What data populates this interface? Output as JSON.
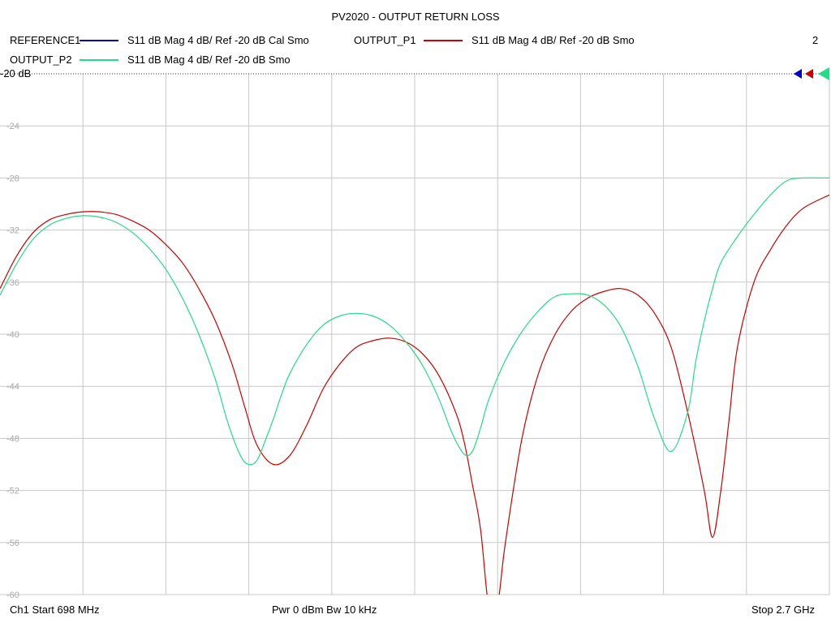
{
  "title": "PV2020 - OUTPUT RETURN LOSS",
  "channel_number": "2",
  "legend": [
    {
      "name": "REFERENCE1",
      "desc": "S11  dB Mag  4 dB/ Ref -20 dB  Cal Smo",
      "color": "#0000cc"
    },
    {
      "name": "OUTPUT_P1",
      "desc": "S11  dB Mag  4 dB/ Ref -20 dB  Smo",
      "color": "#cc0000"
    },
    {
      "name": "OUTPUT_P2",
      "desc": "S11  dB Mag  4 dB/ Ref -20 dB  Smo",
      "color": "#22dd88"
    }
  ],
  "ref_label": "-20 dB",
  "footer": {
    "start": "Ch1  Start  698 MHz",
    "mid": "Pwr  0 dBm  Bw  10 kHz",
    "stop": "Stop  2.7 GHz"
  },
  "chart_data": {
    "type": "line",
    "title": "PV2020 - OUTPUT RETURN LOSS",
    "xlabel": "",
    "ylabel": "",
    "x_unit": "MHz",
    "xlim": [
      698,
      2700
    ],
    "ylim": [
      -60,
      -20
    ],
    "y_ticks": [
      -24,
      -28,
      -32,
      -36,
      -40,
      -44,
      -48,
      -52,
      -56,
      -60
    ],
    "y_tick_labels": [
      "-24",
      "-28",
      "-32",
      "-36",
      "-40",
      "-44",
      "-48",
      "-52",
      "-56",
      "-60"
    ],
    "grid": true,
    "series": [
      {
        "name": "OUTPUT_P1",
        "color": "#cc0000",
        "x": [
          698,
          738,
          778,
          818,
          858,
          898,
          938,
          978,
          1018,
          1058,
          1098,
          1138,
          1178,
          1218,
          1258,
          1288,
          1318,
          1358,
          1398,
          1438,
          1478,
          1518,
          1558,
          1598,
          1638,
          1678,
          1718,
          1758,
          1798,
          1818,
          1838,
          1858,
          1878,
          1898,
          1918,
          1958,
          1998,
          2038,
          2078,
          2118,
          2158,
          2198,
          2238,
          2278,
          2318,
          2358,
          2398,
          2418,
          2438,
          2458,
          2478,
          2518,
          2558,
          2598,
          2638,
          2700
        ],
        "y": [
          -36.5,
          -34.0,
          -32.2,
          -31.2,
          -30.8,
          -30.6,
          -30.6,
          -30.8,
          -31.3,
          -32.0,
          -33.1,
          -34.5,
          -36.5,
          -39.0,
          -42.3,
          -45.5,
          -48.5,
          -50.0,
          -49.3,
          -47.0,
          -44.2,
          -42.3,
          -41.0,
          -40.5,
          -40.3,
          -40.6,
          -41.5,
          -43.2,
          -46.0,
          -48.2,
          -51.5,
          -55.0,
          -61.0,
          -61.0,
          -56.0,
          -48.0,
          -43.0,
          -40.0,
          -38.2,
          -37.2,
          -36.7,
          -36.5,
          -37.0,
          -38.4,
          -41.0,
          -46.0,
          -52.0,
          -55.6,
          -52.0,
          -46.5,
          -41.0,
          -36.0,
          -33.5,
          -31.6,
          -30.3,
          -29.3
        ]
      },
      {
        "name": "OUTPUT_P2",
        "color": "#22dd88",
        "x": [
          698,
          738,
          778,
          818,
          858,
          898,
          938,
          978,
          1018,
          1058,
          1098,
          1138,
          1178,
          1218,
          1248,
          1278,
          1298,
          1318,
          1338,
          1358,
          1378,
          1398,
          1438,
          1478,
          1518,
          1558,
          1598,
          1638,
          1678,
          1718,
          1758,
          1788,
          1818,
          1838,
          1858,
          1878,
          1918,
          1958,
          1998,
          2038,
          2078,
          2118,
          2158,
          2198,
          2238,
          2278,
          2318,
          2358,
          2378,
          2398,
          2418,
          2438,
          2478,
          2518,
          2558,
          2598,
          2638,
          2700
        ],
        "y": [
          -37.0,
          -34.6,
          -32.7,
          -31.6,
          -31.1,
          -30.9,
          -31.0,
          -31.4,
          -32.2,
          -33.4,
          -35.0,
          -37.2,
          -40.0,
          -43.5,
          -46.8,
          -49.3,
          -50.0,
          -49.7,
          -48.2,
          -46.5,
          -44.6,
          -43.0,
          -40.8,
          -39.3,
          -38.6,
          -38.4,
          -38.6,
          -39.3,
          -40.6,
          -42.4,
          -45.0,
          -47.5,
          -49.2,
          -49.0,
          -47.2,
          -45.0,
          -42.0,
          -39.8,
          -38.2,
          -37.1,
          -36.9,
          -37.0,
          -37.8,
          -39.5,
          -42.5,
          -46.5,
          -49.0,
          -46.0,
          -42.0,
          -39.0,
          -36.5,
          -34.5,
          -32.5,
          -30.8,
          -29.3,
          -28.2,
          -28.0,
          -28.0
        ]
      }
    ]
  }
}
